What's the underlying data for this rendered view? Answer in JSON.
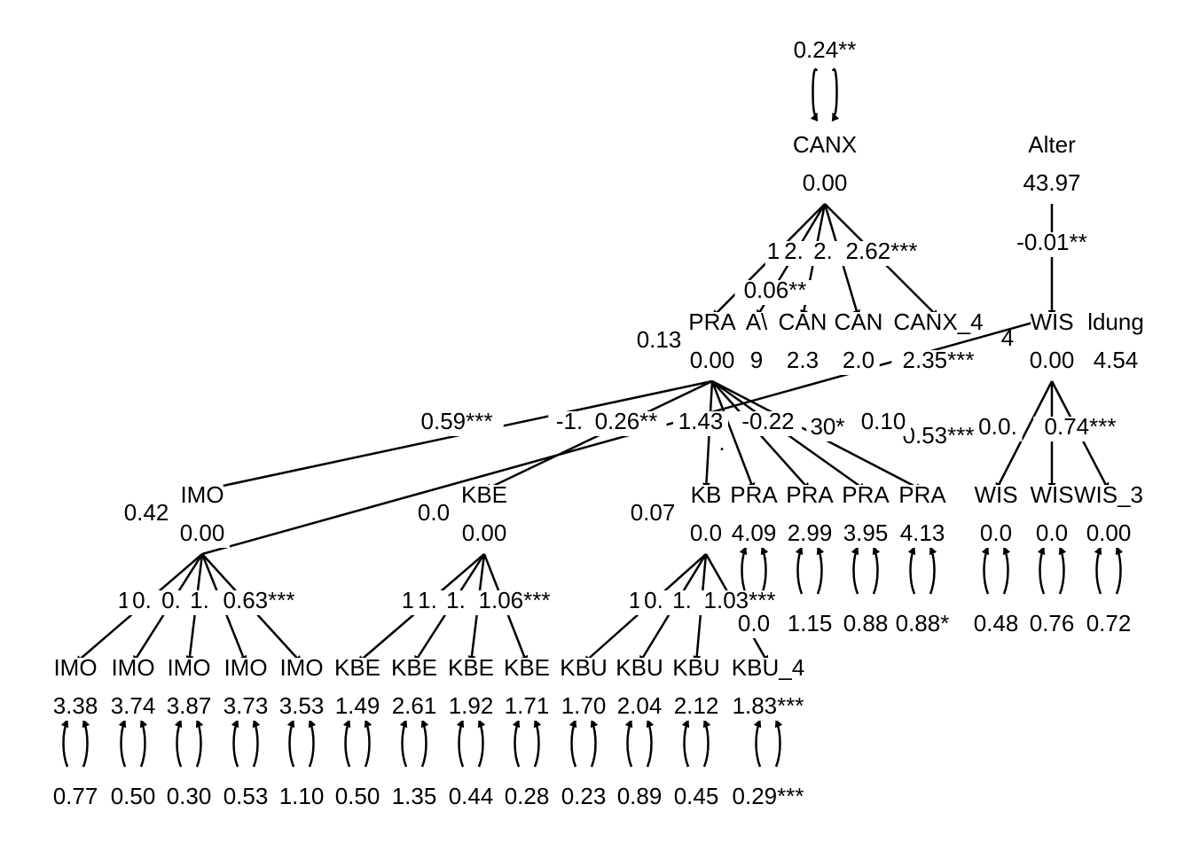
{
  "diagram": {
    "type": "structural-equation-path-diagram",
    "nodes": [
      {
        "id": "CANX",
        "name": "CANX",
        "value": "0.00",
        "var": "0.24**"
      },
      {
        "id": "Alter",
        "name": "Alter",
        "value": "43.97"
      },
      {
        "id": "PRA",
        "name": "PRA",
        "value": "0.00",
        "left_label": "0.13"
      },
      {
        "id": "CANX_1",
        "name": "A\\",
        "value": "9"
      },
      {
        "id": "CANX_2",
        "name": "CAN",
        "value": "2.3"
      },
      {
        "id": "CANX_3",
        "name": "CAN",
        "value": "2.0"
      },
      {
        "id": "CANX_4",
        "name": "CANX_4",
        "value": "2.35***"
      },
      {
        "id": "WIS",
        "name": "WIS",
        "value": "0.00"
      },
      {
        "id": "Bildung",
        "name": "ldung",
        "value": "4.54"
      },
      {
        "id": "IMO",
        "name": "IMO",
        "value": "0.00",
        "left_label": "0.42"
      },
      {
        "id": "KBE",
        "name": "KBE",
        "value": "0.00",
        "left_label": "0.0"
      },
      {
        "id": "KBU",
        "name": "KB",
        "value": "0.0",
        "left_label": "0.07"
      },
      {
        "id": "PRA_1",
        "name": "PRA",
        "value": "4.09",
        "resid": "0.0"
      },
      {
        "id": "PRA_2",
        "name": "PRA",
        "value": "2.99",
        "resid": "1.15"
      },
      {
        "id": "PRA_3",
        "name": "PRA",
        "value": "3.95",
        "resid": "0.88"
      },
      {
        "id": "PRA_4",
        "name": "PRA",
        "value": "4.13",
        "resid": "0.88*"
      },
      {
        "id": "WIS_1",
        "name": "WIS",
        "value": "0.0",
        "resid": "0.48"
      },
      {
        "id": "WIS_2",
        "name": "WIS",
        "value": "0.0",
        "resid": "0.76"
      },
      {
        "id": "WIS_3",
        "name": "WIS_3",
        "value": "0.00",
        "resid": "0.72"
      },
      {
        "id": "IMO_1",
        "name": "IMO",
        "value": "3.38",
        "resid": "0.77"
      },
      {
        "id": "IMO_2",
        "name": "IMO",
        "value": "3.74",
        "resid": "0.50"
      },
      {
        "id": "IMO_3",
        "name": "IMO",
        "value": "3.87",
        "resid": "0.30"
      },
      {
        "id": "IMO_4",
        "name": "IMO",
        "value": "3.73",
        "resid": "0.53"
      },
      {
        "id": "IMO_5",
        "name": "IMO",
        "value": "3.53",
        "resid": "1.10"
      },
      {
        "id": "KBE_1",
        "name": "KBE",
        "value": "1.49",
        "resid": "0.50"
      },
      {
        "id": "KBE_2",
        "name": "KBE",
        "value": "2.61",
        "resid": "1.35"
      },
      {
        "id": "KBE_3",
        "name": "KBE",
        "value": "1.92",
        "resid": "0.44"
      },
      {
        "id": "KBE_4",
        "name": "KBE",
        "value": "1.71",
        "resid": "0.28"
      },
      {
        "id": "KBU_1",
        "name": "KBU",
        "value": "1.70",
        "resid": "0.23"
      },
      {
        "id": "KBU_2",
        "name": "KBU",
        "value": "2.04",
        "resid": "0.89"
      },
      {
        "id": "KBU_3",
        "name": "KBU",
        "value": "2.12",
        "resid": "0.45"
      },
      {
        "id": "KBU_4",
        "name": "KBU_4",
        "value": "1.83***",
        "resid": "0.29***"
      }
    ],
    "edges": [
      {
        "from": "CANX",
        "to": "CANX_1",
        "label": "0.06**"
      },
      {
        "from": "CANX",
        "to": "CANX_2",
        "label": "2."
      },
      {
        "from": "CANX",
        "to": "CANX_3",
        "label": "2."
      },
      {
        "from": "CANX",
        "to": "CANX_4",
        "label": "2.62***"
      },
      {
        "from": "CANX",
        "to": "PRA",
        "label": "1"
      },
      {
        "from": "Alter",
        "to": "WIS",
        "label": "-0.01**"
      },
      {
        "from": "PRA",
        "to": "IMO",
        "label": "0.59***"
      },
      {
        "from": "PRA",
        "to": "KBE",
        "label": "0.26**"
      },
      {
        "from": "PRA",
        "to": "KBU",
        "label": "-1."
      },
      {
        "from": "PRA",
        "to": "PRA_1",
        "label": "1.43"
      },
      {
        "from": "PRA",
        "to": "PRA_2",
        "label": "-0.22"
      },
      {
        "from": "PRA",
        "to": "PRA_3",
        "label": "30*"
      },
      {
        "from": "PRA",
        "to": "PRA_4",
        "label": "0.53***"
      },
      {
        "from": "IMO",
        "to": "WIS",
        "label": "0.10"
      },
      {
        "from": "WIS",
        "to": "WIS_1",
        "label": "0."
      },
      {
        "from": "WIS",
        "to": "WIS_2",
        "label": ""
      },
      {
        "from": "WIS",
        "to": "WIS_3",
        "label": "0.74***"
      },
      {
        "from": "IMO",
        "to": "IMO_1",
        "label": "1"
      },
      {
        "from": "IMO",
        "to": "IMO_2",
        "label": "0."
      },
      {
        "from": "IMO",
        "to": "IMO_3",
        "label": "0."
      },
      {
        "from": "IMO",
        "to": "IMO_4",
        "label": "1."
      },
      {
        "from": "IMO",
        "to": "IMO_5",
        "label": "0.63***"
      },
      {
        "from": "KBE",
        "to": "KBE_1",
        "label": "1"
      },
      {
        "from": "KBE",
        "to": "KBE_2",
        "label": "1."
      },
      {
        "from": "KBE",
        "to": "KBE_3",
        "label": "1."
      },
      {
        "from": "KBE",
        "to": "KBE_4",
        "label": "1.06***"
      },
      {
        "from": "KBU",
        "to": "KBU_1",
        "label": "1"
      },
      {
        "from": "KBU",
        "to": "KBU_2",
        "label": "0."
      },
      {
        "from": "KBU",
        "to": "KBU_3",
        "label": "1."
      },
      {
        "from": "KBU",
        "to": "KBU_4",
        "label": "1.03***"
      }
    ],
    "extra_labels": [
      {
        "text": "4"
      },
      {
        "text": "."
      },
      {
        "text": "0."
      }
    ]
  }
}
